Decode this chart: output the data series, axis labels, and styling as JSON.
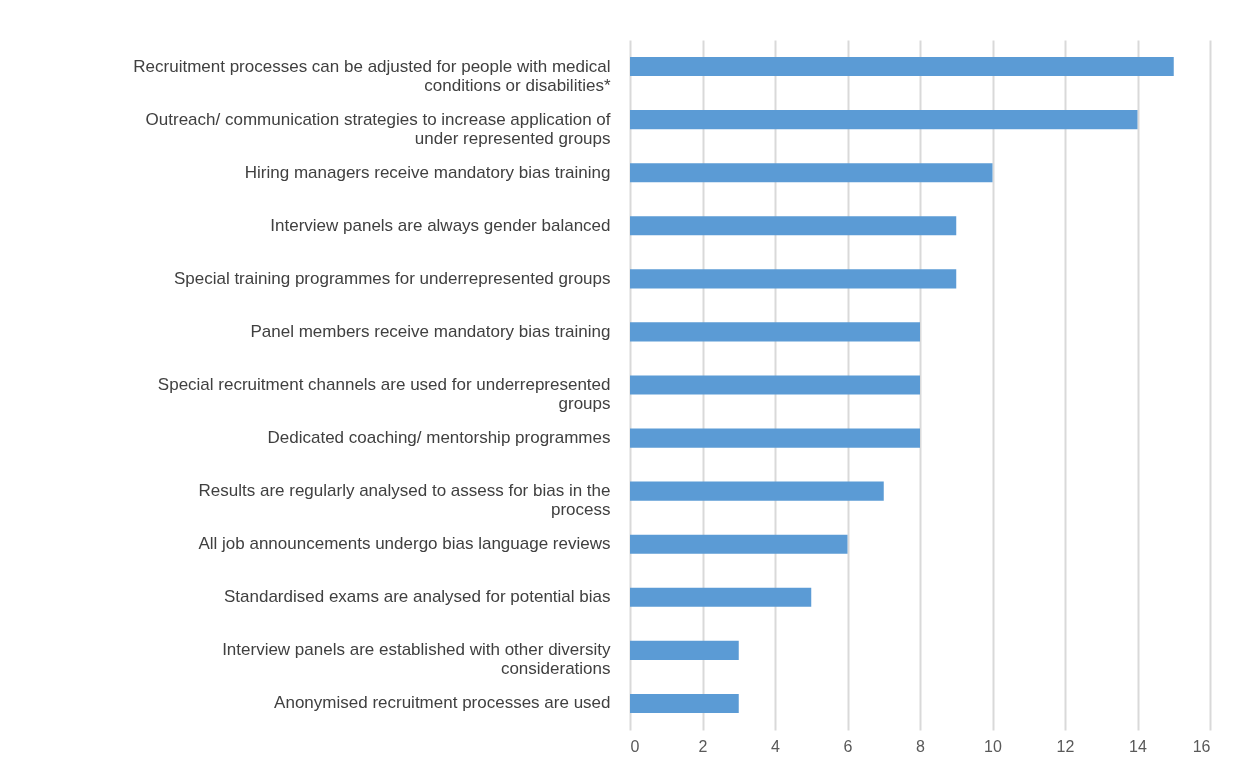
{
  "chart_data": {
    "type": "bar",
    "orientation": "horizontal",
    "categories": [
      "Recruitment processes can be adjusted for people with medical conditions or disabilities*",
      "Outreach/ communication strategies to increase application of under represented groups",
      "Hiring managers receive mandatory bias training",
      "Interview panels are always gender balanced",
      "Special training programmes for underrepresented groups",
      "Panel members receive mandatory bias training",
      "Special recruitment channels are used for underrepresented groups",
      "Dedicated coaching/ mentorship programmes",
      "Results are regularly analysed to assess for bias in the process",
      "All job announcements undergo bias language reviews",
      "Standardised exams are analysed for potential bias",
      "Interview panels are established with other diversity considerations",
      "Anonymised recruitment processes are used"
    ],
    "values": [
      15,
      14,
      10,
      9,
      9,
      8,
      8,
      8,
      7,
      6,
      5,
      3,
      3
    ],
    "color": "#5b9bd5",
    "xlim": [
      0,
      16
    ],
    "xticks": [
      0,
      2,
      4,
      6,
      8,
      10,
      12,
      14,
      16
    ],
    "grid": "x"
  }
}
